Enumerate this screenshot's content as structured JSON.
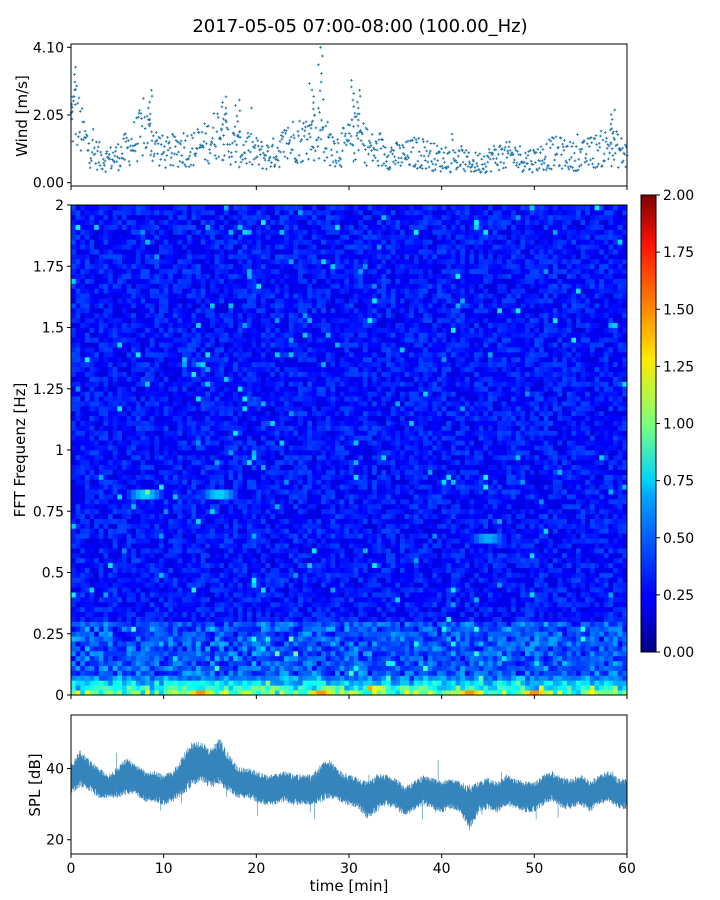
{
  "title": "2017-05-05 07:00-08:00 (100.00_Hz)",
  "chart_data": [
    {
      "type": "scatter",
      "panel": "wind",
      "ylabel": "Wind [m/s]",
      "xlim": [
        0,
        60
      ],
      "ylim": [
        -0.1,
        4.2
      ],
      "yticks": [
        0.0,
        2.05,
        4.1
      ],
      "ytick_labels": [
        "0.00",
        "2.05",
        "4.10"
      ],
      "xticks": [
        0,
        10,
        20,
        30,
        40,
        50,
        60
      ],
      "x_tick_labels_visible": false,
      "marker": "+",
      "color": "#1f77b4",
      "trend": {
        "x": [
          0,
          0.5,
          1,
          2,
          3,
          4,
          5,
          6,
          7,
          8,
          9,
          10,
          11,
          12,
          13,
          14,
          15,
          16,
          17,
          18,
          19,
          20,
          21,
          22,
          23,
          24,
          25,
          26,
          27,
          28,
          29,
          30,
          31,
          32,
          33,
          34,
          35,
          36,
          37,
          38,
          39,
          40,
          41,
          42,
          43,
          44,
          45,
          46,
          47,
          48,
          49,
          50,
          51,
          52,
          53,
          54,
          55,
          56,
          57,
          58,
          59,
          60
        ],
        "y": [
          1.8,
          2.2,
          1.6,
          1.0,
          0.8,
          0.7,
          0.8,
          1.0,
          1.3,
          1.6,
          1.2,
          0.9,
          0.9,
          1.1,
          1.0,
          1.1,
          1.3,
          1.6,
          1.2,
          1.0,
          1.0,
          0.9,
          0.8,
          0.9,
          1.1,
          1.3,
          1.3,
          1.4,
          1.5,
          1.1,
          1.0,
          1.2,
          1.4,
          1.1,
          0.9,
          0.9,
          0.8,
          0.8,
          0.9,
          0.9,
          0.8,
          0.7,
          0.7,
          0.7,
          0.6,
          0.6,
          0.7,
          0.8,
          0.8,
          0.8,
          0.7,
          0.7,
          0.8,
          0.9,
          0.9,
          0.8,
          0.8,
          0.9,
          1.0,
          1.1,
          1.0,
          0.8
        ]
      },
      "peaks": [
        {
          "x": 0.3,
          "y": 3.5
        },
        {
          "x": 8.5,
          "y": 2.8
        },
        {
          "x": 16.5,
          "y": 2.6
        },
        {
          "x": 18.0,
          "y": 2.5
        },
        {
          "x": 26.0,
          "y": 3.0
        },
        {
          "x": 27.0,
          "y": 4.1
        },
        {
          "x": 30.5,
          "y": 3.1
        },
        {
          "x": 31.0,
          "y": 2.8
        },
        {
          "x": 58.5,
          "y": 2.2
        }
      ]
    },
    {
      "type": "heatmap",
      "panel": "spectrogram",
      "ylabel": "FFT Frequenz [Hz]",
      "xlim": [
        0,
        60
      ],
      "ylim": [
        0,
        2
      ],
      "yticks": [
        0,
        0.25,
        0.5,
        0.75,
        1,
        1.25,
        1.5,
        1.75,
        2
      ],
      "ytick_labels": [
        "0",
        "0.25",
        "0.5",
        "0.75",
        "1",
        "1.25",
        "1.5",
        "1.75",
        "2"
      ],
      "xticks": [
        0,
        10,
        20,
        30,
        40,
        50,
        60
      ],
      "x_tick_labels_visible": false,
      "colormap": "jet",
      "vmin": 0.0,
      "vmax": 2.0,
      "typical_value": 0.25,
      "low_frequency_band_value": 1.0,
      "hotspots": [
        {
          "x": 8.0,
          "y": 0.82,
          "value": 0.85
        },
        {
          "x": 16.0,
          "y": 0.82,
          "value": 0.85
        },
        {
          "x": 14.0,
          "y": 0.0,
          "value": 1.9
        },
        {
          "x": 27.0,
          "y": 0.0,
          "value": 1.9
        },
        {
          "x": 33.0,
          "y": 0.03,
          "value": 1.2
        },
        {
          "x": 43.0,
          "y": 0.0,
          "value": 1.9
        },
        {
          "x": 50.0,
          "y": 0.0,
          "value": 1.9
        },
        {
          "x": 45.0,
          "y": 0.64,
          "value": 0.75
        }
      ]
    },
    {
      "type": "line",
      "panel": "spl",
      "ylabel": "SPL [dB]",
      "xlabel": "time [min]",
      "xlim": [
        0,
        60
      ],
      "ylim": [
        16,
        55
      ],
      "xticks": [
        0,
        10,
        20,
        30,
        40,
        50,
        60
      ],
      "xtick_labels": [
        "0",
        "10",
        "20",
        "30",
        "40",
        "50",
        "60"
      ],
      "yticks": [
        20,
        40
      ],
      "ytick_labels": [
        "20",
        "40"
      ],
      "color": "#1f77b4",
      "series": [
        {
          "x": [
            0,
            1,
            2,
            3,
            4,
            5,
            6,
            7,
            8,
            9,
            10,
            11,
            12,
            13,
            14,
            15,
            16,
            17,
            18,
            19,
            20,
            21,
            22,
            23,
            24,
            25,
            26,
            27,
            28,
            29,
            30,
            31,
            32,
            33,
            34,
            35,
            36,
            37,
            38,
            39,
            40,
            41,
            42,
            43,
            44,
            45,
            46,
            47,
            48,
            49,
            50,
            51,
            52,
            53,
            54,
            55,
            56,
            57,
            58,
            59,
            60
          ],
          "y": [
            37,
            40,
            38,
            36,
            35,
            36,
            38,
            37,
            35,
            35,
            34,
            35,
            38,
            41,
            42,
            40,
            42,
            39,
            36,
            36,
            35,
            34,
            34,
            35,
            34,
            34,
            34,
            36,
            37,
            35,
            34,
            33,
            31,
            33,
            34,
            33,
            31,
            32,
            34,
            33,
            32,
            33,
            32,
            29,
            32,
            33,
            32,
            34,
            33,
            32,
            32,
            34,
            35,
            33,
            33,
            34,
            32,
            34,
            35,
            33,
            33
          ],
          "band": [
            4,
            5,
            4,
            4,
            3,
            4,
            5,
            4,
            4,
            4,
            4,
            4,
            5,
            6,
            5,
            5,
            6,
            5,
            4,
            4,
            4,
            4,
            4,
            4,
            4,
            4,
            4,
            5,
            5,
            4,
            4,
            4,
            5,
            5,
            4,
            4,
            4,
            4,
            4,
            4,
            4,
            4,
            4,
            6,
            4,
            4,
            4,
            4,
            4,
            4,
            4,
            4,
            4,
            4,
            4,
            4,
            4,
            4,
            4,
            4,
            4
          ]
        }
      ]
    },
    {
      "type": "colorbar",
      "panel": "colorbar",
      "colormap": "jet",
      "vmin": 0.0,
      "vmax": 2.0,
      "ticks": [
        0.0,
        0.25,
        0.5,
        0.75,
        1.0,
        1.25,
        1.5,
        1.75,
        2.0
      ],
      "tick_labels": [
        "0.00",
        "0.25",
        "0.50",
        "0.75",
        "1.00",
        "1.25",
        "1.50",
        "1.75",
        "2.00"
      ]
    }
  ]
}
